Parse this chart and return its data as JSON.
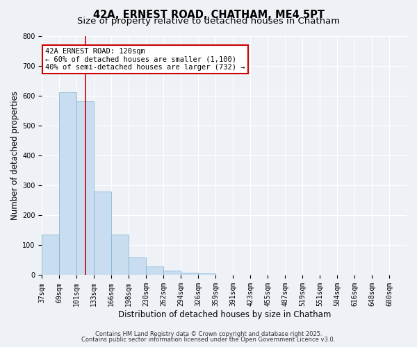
{
  "title": "42A, ERNEST ROAD, CHATHAM, ME4 5PT",
  "subtitle": "Size of property relative to detached houses in Chatham",
  "bar_values": [
    135,
    610,
    580,
    280,
    135,
    58,
    30,
    15,
    8,
    5,
    2,
    0,
    0,
    0,
    0,
    0,
    0,
    0,
    0,
    0,
    0
  ],
  "categories": [
    "37sqm",
    "69sqm",
    "101sqm",
    "133sqm",
    "166sqm",
    "198sqm",
    "230sqm",
    "262sqm",
    "294sqm",
    "326sqm",
    "359sqm",
    "391sqm",
    "423sqm",
    "455sqm",
    "487sqm",
    "519sqm",
    "551sqm",
    "584sqm",
    "616sqm",
    "648sqm",
    "680sqm"
  ],
  "bar_color": "#c8ddef",
  "bar_edge_color": "#7aaed0",
  "ylim": [
    0,
    800
  ],
  "yticks": [
    0,
    100,
    200,
    300,
    400,
    500,
    600,
    700,
    800
  ],
  "ylabel": "Number of detached properties",
  "xlabel": "Distribution of detached houses by size in Chatham",
  "annotation_title": "42A ERNEST ROAD: 120sqm",
  "annotation_line1": "← 60% of detached houses are smaller (1,100)",
  "annotation_line2": "40% of semi-detached houses are larger (732) →",
  "vertical_line_x": 2.5,
  "annotation_box_color": "#ffffff",
  "annotation_box_edge_color": "#cc0000",
  "vline_color": "#cc0000",
  "footer1": "Contains HM Land Registry data © Crown copyright and database right 2025.",
  "footer2": "Contains public sector information licensed under the Open Government Licence v3.0.",
  "background_color": "#eef2f7",
  "grid_color": "#ffffff",
  "title_fontsize": 10.5,
  "subtitle_fontsize": 9.5,
  "axis_label_fontsize": 8.5,
  "tick_fontsize": 7,
  "annotation_fontsize": 7.5,
  "footer_fontsize": 6
}
